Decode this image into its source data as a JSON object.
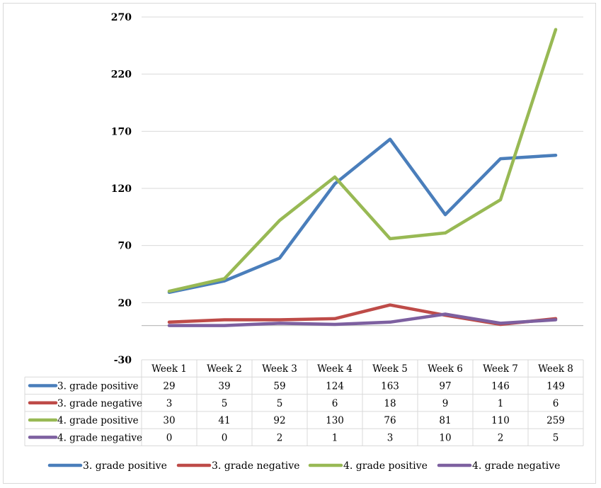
{
  "chart_data": {
    "type": "line",
    "categories": [
      "Week 1",
      "Week 2",
      "Week 3",
      "Week 4",
      "Week 5",
      "Week 6",
      "Week 7",
      "Week 8"
    ],
    "series": [
      {
        "name": "3. grade positive",
        "color": "#4a7ebb",
        "values": [
          29,
          39,
          59,
          124,
          163,
          97,
          146,
          149
        ]
      },
      {
        "name": "3. grade negative",
        "color": "#be4b48",
        "values": [
          3,
          5,
          5,
          6,
          18,
          9,
          1,
          6
        ]
      },
      {
        "name": "4. grade positive",
        "color": "#98b954",
        "values": [
          30,
          41,
          92,
          130,
          76,
          81,
          110,
          259
        ]
      },
      {
        "name": "4. grade negative",
        "color": "#7d60a0",
        "values": [
          0,
          0,
          2,
          1,
          3,
          10,
          2,
          5
        ]
      }
    ],
    "ylim": [
      -30,
      270
    ],
    "yticks": [
      -30,
      20,
      70,
      120,
      170,
      220,
      270
    ],
    "grid": true,
    "legend": "bottom",
    "data_table": true
  }
}
